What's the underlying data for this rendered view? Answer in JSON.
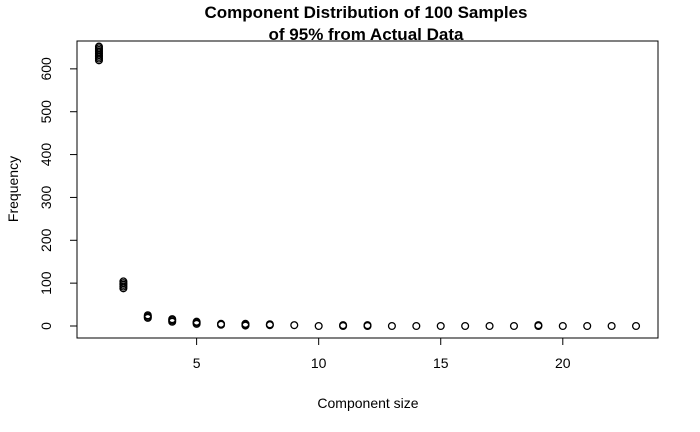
{
  "chart_data": {
    "type": "scatter",
    "title_line1": "Component Distribution of 100 Samples",
    "title_line2": "of 95% from Actual Data",
    "xlabel": "Component size",
    "ylabel": "Frequency",
    "xlim": [
      0.1,
      23.9
    ],
    "ylim": [
      -28,
      665
    ],
    "x_ticks": [
      5,
      10,
      15,
      20
    ],
    "y_ticks": [
      0,
      100,
      200,
      300,
      400,
      500,
      600
    ],
    "grid": false,
    "legend": "none",
    "point_color": "#000000",
    "points": [
      {
        "x": 1,
        "y": 620
      },
      {
        "x": 1,
        "y": 624
      },
      {
        "x": 1,
        "y": 628
      },
      {
        "x": 1,
        "y": 632
      },
      {
        "x": 1,
        "y": 636
      },
      {
        "x": 1,
        "y": 640
      },
      {
        "x": 1,
        "y": 644
      },
      {
        "x": 1,
        "y": 648
      },
      {
        "x": 1,
        "y": 652
      },
      {
        "x": 2,
        "y": 88
      },
      {
        "x": 2,
        "y": 92
      },
      {
        "x": 2,
        "y": 96
      },
      {
        "x": 2,
        "y": 100
      },
      {
        "x": 2,
        "y": 104
      },
      {
        "x": 3,
        "y": 19
      },
      {
        "x": 3,
        "y": 22
      },
      {
        "x": 3,
        "y": 25
      },
      {
        "x": 4,
        "y": 10
      },
      {
        "x": 4,
        "y": 13
      },
      {
        "x": 4,
        "y": 16
      },
      {
        "x": 5,
        "y": 5
      },
      {
        "x": 5,
        "y": 8
      },
      {
        "x": 5,
        "y": 10
      },
      {
        "x": 6,
        "y": 3
      },
      {
        "x": 6,
        "y": 5
      },
      {
        "x": 7,
        "y": 1
      },
      {
        "x": 7,
        "y": 3
      },
      {
        "x": 7,
        "y": 5
      },
      {
        "x": 8,
        "y": 2
      },
      {
        "x": 8,
        "y": 4
      },
      {
        "x": 9,
        "y": 2
      },
      {
        "x": 10,
        "y": 0
      },
      {
        "x": 11,
        "y": 0
      },
      {
        "x": 11,
        "y": 2
      },
      {
        "x": 12,
        "y": 0
      },
      {
        "x": 12,
        "y": 2
      },
      {
        "x": 13,
        "y": 0
      },
      {
        "x": 14,
        "y": 0
      },
      {
        "x": 15,
        "y": 0
      },
      {
        "x": 16,
        "y": 0
      },
      {
        "x": 17,
        "y": 0
      },
      {
        "x": 18,
        "y": 0
      },
      {
        "x": 19,
        "y": 0
      },
      {
        "x": 19,
        "y": 2
      },
      {
        "x": 20,
        "y": 0
      },
      {
        "x": 21,
        "y": 0
      },
      {
        "x": 22,
        "y": 0
      },
      {
        "x": 23,
        "y": 0
      }
    ]
  }
}
